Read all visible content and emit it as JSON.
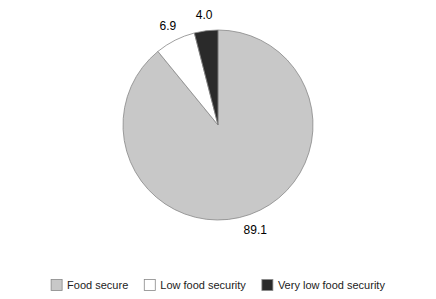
{
  "chart_data": {
    "type": "pie",
    "categories": [
      "Food secure",
      "Low food security",
      "Very low food security"
    ],
    "values": [
      89.1,
      6.9,
      4.0
    ],
    "value_labels": [
      "89.1",
      "6.9",
      "4.0"
    ],
    "colors": [
      "#c8c8c8",
      "#ffffff",
      "#2a2a2a"
    ],
    "data_labels": true,
    "legend": "bottom"
  }
}
